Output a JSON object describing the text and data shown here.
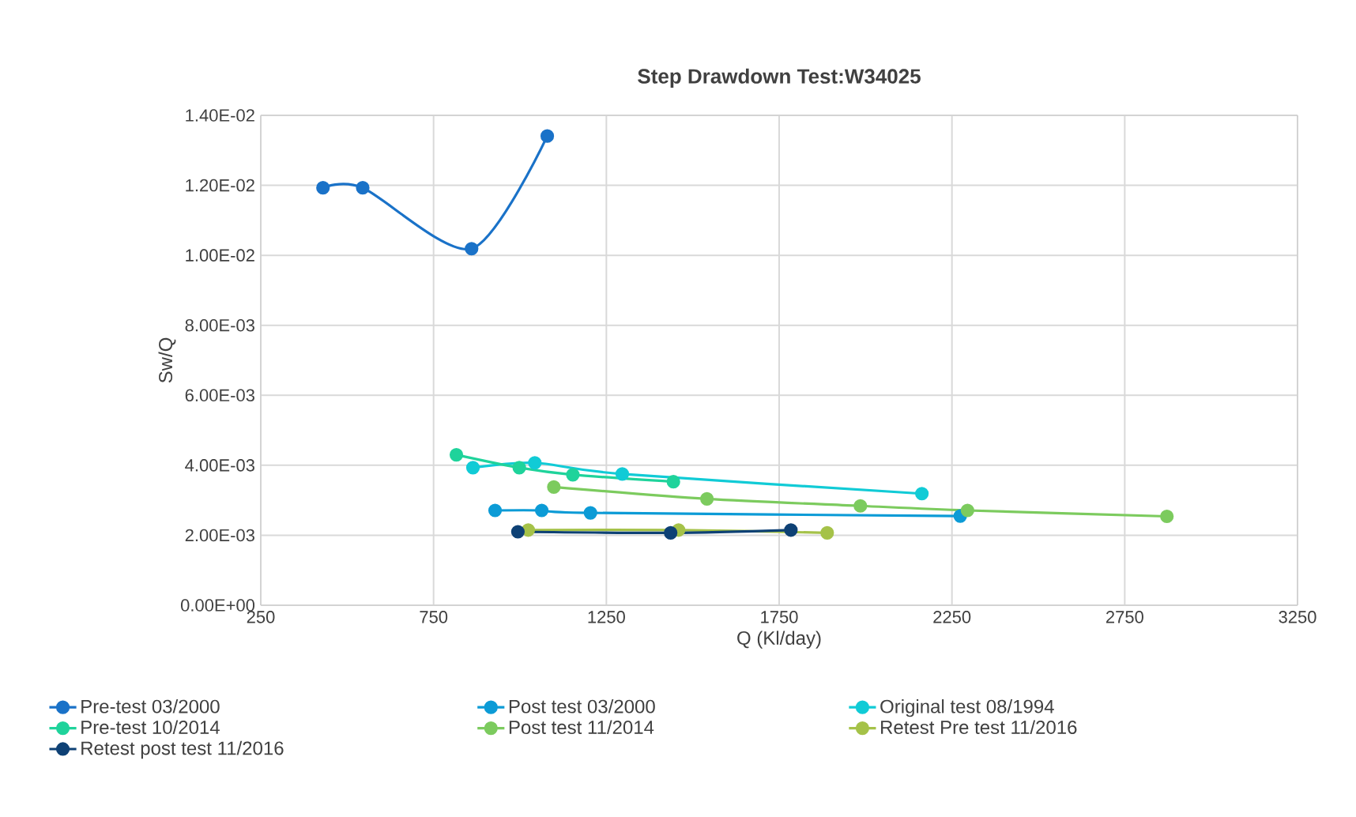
{
  "chart_data": {
    "type": "line",
    "title": "Step Drawdown Test:W34025",
    "xlabel": "Q (Kl/day)",
    "ylabel": "Sw/Q",
    "xlim": [
      250,
      3250
    ],
    "xticks": [
      250,
      750,
      1250,
      1750,
      2250,
      2750,
      3250
    ],
    "ylim": [
      0,
      0.014
    ],
    "yticks": [
      {
        "value": 0,
        "label": "0.00E+00"
      },
      {
        "value": 0.002,
        "label": "2.00E-03"
      },
      {
        "value": 0.004,
        "label": "4.00E-03"
      },
      {
        "value": 0.006,
        "label": "6.00E-03"
      },
      {
        "value": 0.008,
        "label": "8.00E-03"
      },
      {
        "value": 0.01,
        "label": "1.00E-02"
      },
      {
        "value": 0.012,
        "label": "1.20E-02"
      },
      {
        "value": 0.014,
        "label": "1.40E-02"
      }
    ],
    "grid": true,
    "legend": "bottom",
    "marker": "circle",
    "line_style": "solid",
    "series": [
      {
        "name": "Pre-test 03/2000",
        "color": "#1a72c8",
        "x": [
          430,
          545,
          860,
          1079
        ],
        "values": [
          0.01193,
          0.01193,
          0.01019,
          0.01341
        ]
      },
      {
        "name": "Post test 03/2000",
        "color": "#0c9bd6",
        "x": [
          928,
          1063,
          1204,
          2274
        ],
        "values": [
          0.00271,
          0.00271,
          0.00264,
          0.00255
        ]
      },
      {
        "name": "Original test 08/1994",
        "color": "#11cbd6",
        "x": [
          864,
          1043,
          1296,
          2163
        ],
        "values": [
          0.00393,
          0.00407,
          0.00375,
          0.00319
        ]
      },
      {
        "name": "Pre-test 10/2014",
        "color": "#1fd39b",
        "x": [
          816,
          998,
          1153,
          1444
        ],
        "values": [
          0.0043,
          0.00393,
          0.00373,
          0.00353
        ]
      },
      {
        "name": "Post test 11/2014",
        "color": "#7ccb5e",
        "x": [
          1098,
          1541,
          1985,
          2295,
          2872
        ],
        "values": [
          0.00338,
          0.00304,
          0.00284,
          0.00271,
          0.00254
        ]
      },
      {
        "name": "Retest Pre test 11/2016",
        "color": "#a5c249",
        "x": [
          1024,
          1459,
          1889
        ],
        "values": [
          0.00215,
          0.00215,
          0.00207
        ]
      },
      {
        "name": "Retest post test 11/2016",
        "color": "#0e4175",
        "x": [
          994,
          1436,
          1784
        ],
        "values": [
          0.0021,
          0.00207,
          0.00215
        ]
      }
    ]
  }
}
